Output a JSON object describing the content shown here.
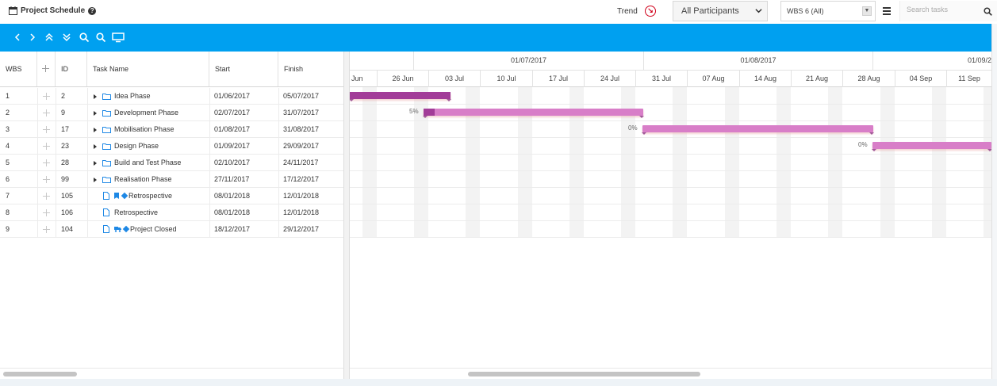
{
  "header": {
    "title": "Project Schedule",
    "trend_label": "Trend",
    "participants_value": "All Participants",
    "wbs_value": "WBS 6 (All)",
    "search_placeholder": "Search tasks"
  },
  "grid": {
    "columns": [
      "WBS",
      "ID",
      "Task Name",
      "Start",
      "Finish"
    ],
    "rows": [
      {
        "wbs": "1",
        "id": "2",
        "name": "Idea Phase",
        "start": "01/06/2017",
        "finish": "05/07/2017",
        "type": "phase"
      },
      {
        "wbs": "2",
        "id": "9",
        "name": "Development Phase",
        "start": "02/07/2017",
        "finish": "31/07/2017",
        "type": "phase"
      },
      {
        "wbs": "3",
        "id": "17",
        "name": "Mobilisation Phase",
        "start": "01/08/2017",
        "finish": "31/08/2017",
        "type": "phase"
      },
      {
        "wbs": "4",
        "id": "23",
        "name": "Design Phase",
        "start": "01/09/2017",
        "finish": "29/09/2017",
        "type": "phase"
      },
      {
        "wbs": "5",
        "id": "28",
        "name": "Build and Test Phase",
        "start": "02/10/2017",
        "finish": "24/11/2017",
        "type": "phase"
      },
      {
        "wbs": "6",
        "id": "99",
        "name": "Realisation Phase",
        "start": "27/11/2017",
        "finish": "17/12/2017",
        "type": "phase"
      },
      {
        "wbs": "7",
        "id": "105",
        "name": "Retrospective",
        "start": "08/01/2018",
        "finish": "12/01/2018",
        "type": "task-flag"
      },
      {
        "wbs": "8",
        "id": "106",
        "name": "Retrospective",
        "start": "08/01/2018",
        "finish": "12/01/2018",
        "type": "task"
      },
      {
        "wbs": "9",
        "id": "104",
        "name": "Project Closed",
        "start": "18/12/2017",
        "finish": "29/12/2017",
        "type": "task-truck"
      }
    ]
  },
  "gantt": {
    "months": [
      "01/07/2017",
      "01/08/2017",
      "01/09/2"
    ],
    "weeks": [
      "Jun",
      "26 Jun",
      "03 Jul",
      "10 Jul",
      "17 Jul",
      "24 Jul",
      "31 Jul",
      "07 Aug",
      "14 Aug",
      "21 Aug",
      "28 Aug",
      "04 Sep",
      "11 Sep"
    ],
    "bars": [
      {
        "row": 0,
        "progress_label": "",
        "progress": 1.0
      },
      {
        "row": 1,
        "progress_label": "5%",
        "progress": 0.05
      },
      {
        "row": 2,
        "progress_label": "0%",
        "progress": 0.0
      },
      {
        "row": 3,
        "progress_label": "0%",
        "progress": 0.0
      }
    ]
  },
  "colors": {
    "toolbar": "#00a0f0",
    "bar": "#d87ec8",
    "bar_progress": "#a23c98",
    "trend": "#d0021b",
    "milestone": "#1e88e5"
  },
  "icons": [
    "calendar-icon",
    "help-icon",
    "trend-down-icon",
    "chevron-down-icon",
    "menu-icon",
    "search-icon",
    "arrow-left-icon",
    "arrow-right-icon",
    "collapse-all-icon",
    "expand-all-icon",
    "zoom-in-icon",
    "zoom-out-icon",
    "monitor-icon",
    "plus-icon",
    "folder-icon",
    "document-icon",
    "flag-icon",
    "diamond-icon",
    "truck-icon"
  ]
}
